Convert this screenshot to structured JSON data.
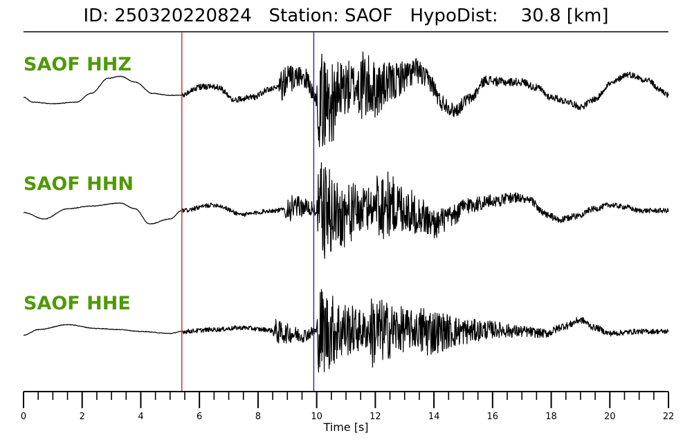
{
  "header": {
    "title": "ID: 250320220824   Station: SAOF   HypoDist:    30.8 [km]"
  },
  "colors": {
    "trace": "#000000",
    "label": "#4e9a06",
    "p_pick": "#dd2222",
    "s_pick": "#2222cc"
  },
  "chart_data": {
    "type": "line",
    "title": "ID: 250320220824   Station: SAOF   HypoDist:    30.8 [km]",
    "xlabel": "Time [s]",
    "xlim": [
      0,
      22
    ],
    "xticks": [
      0,
      2,
      4,
      6,
      8,
      10,
      12,
      14,
      16,
      18,
      20,
      22
    ],
    "minor_tick_step": 0.5,
    "grid": false,
    "picks": [
      {
        "color": "red",
        "time": 5.4
      },
      {
        "color": "blue",
        "time": 9.9
      }
    ],
    "series": [
      {
        "name": "SAOF HHZ",
        "noise_level": 0.16,
        "shape_points": [
          [
            0,
            -0.05
          ],
          [
            0.3,
            -0.18
          ],
          [
            1,
            -0.22
          ],
          [
            1.8,
            -0.18
          ],
          [
            2.3,
            0.05
          ],
          [
            2.9,
            0.45
          ],
          [
            3.3,
            0.5
          ],
          [
            3.8,
            0.35
          ],
          [
            4.4,
            0.05
          ],
          [
            5.0,
            0.0
          ],
          [
            5.4,
            0.0
          ],
          [
            6.0,
            0.22
          ],
          [
            6.6,
            0.22
          ],
          [
            7.2,
            -0.12
          ],
          [
            7.8,
            -0.05
          ],
          [
            8.4,
            0.15
          ],
          [
            9.0,
            0.4
          ],
          [
            9.6,
            0.45
          ],
          [
            10.0,
            -0.1
          ],
          [
            10.5,
            -0.2
          ],
          [
            11.0,
            0.2
          ],
          [
            11.5,
            0.25
          ],
          [
            12.0,
            0.15
          ],
          [
            12.5,
            0.3
          ],
          [
            13.0,
            0.5
          ],
          [
            13.4,
            0.65
          ],
          [
            13.8,
            0.4
          ],
          [
            14.3,
            -0.2
          ],
          [
            14.7,
            -0.4
          ],
          [
            15.2,
            -0.1
          ],
          [
            15.8,
            0.4
          ],
          [
            16.3,
            0.35
          ],
          [
            17.0,
            0.35
          ],
          [
            17.5,
            0.2
          ],
          [
            18.0,
            -0.05
          ],
          [
            18.5,
            -0.15
          ],
          [
            19.0,
            -0.3
          ],
          [
            19.5,
            -0.1
          ],
          [
            20.0,
            0.3
          ],
          [
            20.6,
            0.55
          ],
          [
            21.3,
            0.4
          ],
          [
            21.7,
            0.15
          ],
          [
            22.0,
            0.0
          ]
        ],
        "bursts": [
          {
            "t": 8.7,
            "amp": 0.9,
            "len": 1.0
          },
          {
            "t": 10.0,
            "amp": 2.6,
            "len": 1.4
          },
          {
            "t": 11.4,
            "amp": 1.0,
            "len": 1.6
          }
        ]
      },
      {
        "name": "SAOF HHN",
        "noise_level": 0.12,
        "shape_points": [
          [
            0,
            -0.05
          ],
          [
            0.7,
            -0.22
          ],
          [
            1.5,
            0.05
          ],
          [
            2.3,
            0.12
          ],
          [
            3.3,
            0.2
          ],
          [
            3.8,
            0.05
          ],
          [
            4.3,
            -0.35
          ],
          [
            5.0,
            -0.22
          ],
          [
            5.4,
            0.0
          ],
          [
            6.5,
            0.15
          ],
          [
            7.5,
            -0.1
          ],
          [
            8.5,
            0.0
          ],
          [
            9.5,
            0.1
          ],
          [
            10.1,
            0.0
          ],
          [
            10.8,
            -0.1
          ],
          [
            11.5,
            0.0
          ],
          [
            12.2,
            0.2
          ],
          [
            12.8,
            0.1
          ],
          [
            13.5,
            -0.1
          ],
          [
            14.0,
            -0.35
          ],
          [
            14.5,
            -0.2
          ],
          [
            15.2,
            0.15
          ],
          [
            16.0,
            0.25
          ],
          [
            16.8,
            0.35
          ],
          [
            17.3,
            0.25
          ],
          [
            17.8,
            -0.1
          ],
          [
            18.3,
            -0.25
          ],
          [
            18.8,
            -0.15
          ],
          [
            19.5,
            0.05
          ],
          [
            20.0,
            0.15
          ],
          [
            20.5,
            0.1
          ],
          [
            21.0,
            0.0
          ],
          [
            22.0,
            0.0
          ]
        ],
        "bursts": [
          {
            "t": 8.9,
            "amp": 0.7,
            "len": 1.0
          },
          {
            "t": 10.0,
            "amp": 2.6,
            "len": 1.8
          },
          {
            "t": 12.0,
            "amp": 1.2,
            "len": 1.8
          }
        ]
      },
      {
        "name": "SAOF HHE",
        "noise_level": 0.12,
        "shape_points": [
          [
            0,
            -0.1
          ],
          [
            0.5,
            0.05
          ],
          [
            1.5,
            0.18
          ],
          [
            2.5,
            0.08
          ],
          [
            3.3,
            0.05
          ],
          [
            4.0,
            0.0
          ],
          [
            5.0,
            -0.05
          ],
          [
            5.4,
            0.0
          ],
          [
            6.5,
            0.05
          ],
          [
            7.5,
            0.1
          ],
          [
            8.2,
            0.05
          ],
          [
            9.0,
            -0.05
          ],
          [
            9.5,
            -0.1
          ],
          [
            10.0,
            0.0
          ],
          [
            11.0,
            0.05
          ],
          [
            12.0,
            0.0
          ],
          [
            13.0,
            0.05
          ],
          [
            14.0,
            0.0
          ],
          [
            15.0,
            0.0
          ],
          [
            16.0,
            0.05
          ],
          [
            17.0,
            0.0
          ],
          [
            17.8,
            -0.05
          ],
          [
            18.5,
            0.15
          ],
          [
            19.0,
            0.3
          ],
          [
            19.5,
            0.1
          ],
          [
            20.0,
            -0.05
          ],
          [
            21.0,
            0.0
          ],
          [
            22.0,
            0.0
          ]
        ],
        "bursts": [
          {
            "t": 8.5,
            "amp": 0.6,
            "len": 1.2
          },
          {
            "t": 10.0,
            "amp": 2.4,
            "len": 1.6
          },
          {
            "t": 11.8,
            "amp": 1.2,
            "len": 2.0
          },
          {
            "t": 13.5,
            "amp": 0.7,
            "len": 1.5
          }
        ]
      }
    ]
  }
}
